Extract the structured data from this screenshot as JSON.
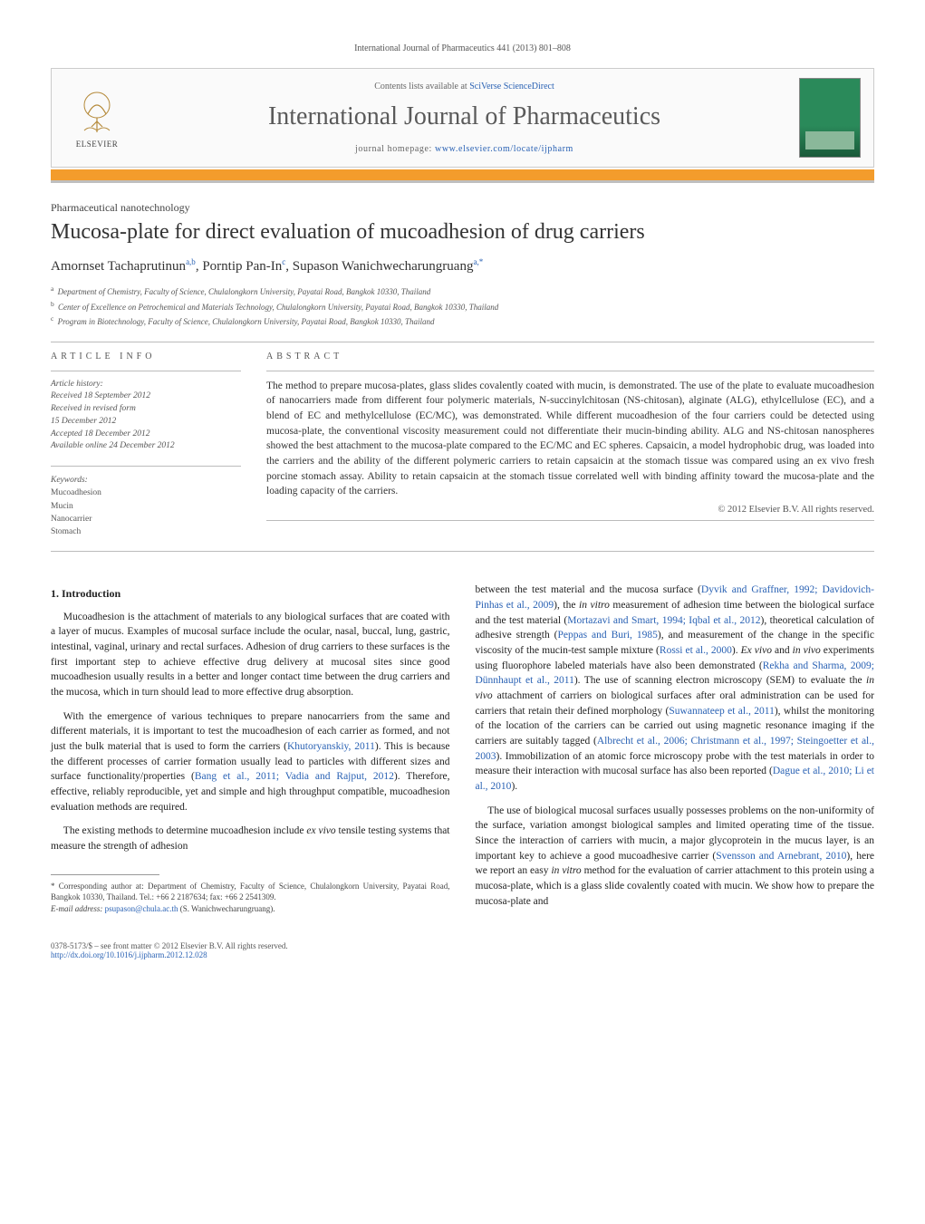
{
  "journal_ref": "International Journal of Pharmaceutics 441 (2013) 801–808",
  "header": {
    "contents_prefix": "Contents lists available at ",
    "contents_link": "SciVerse ScienceDirect",
    "journal_title": "International Journal of Pharmaceutics",
    "homepage_prefix": "journal homepage: ",
    "homepage_link": "www.elsevier.com/locate/ijpharm",
    "publisher": "ELSEVIER"
  },
  "section_tag": "Pharmaceutical nanotechnology",
  "title": "Mucosa-plate for direct evaluation of mucoadhesion of drug carriers",
  "authors_html": "Amornset Tachaprutinun<sup>a,b</sup>, Porntip Pan-In<sup>c</sup>, Supason Wanichwecharungruang<sup>a,*</sup>",
  "affiliations": [
    "a Department of Chemistry, Faculty of Science, Chulalongkorn University, Payatai Road, Bangkok 10330, Thailand",
    "b Center of Excellence on Petrochemical and Materials Technology, Chulalongkorn University, Payatai Road, Bangkok 10330, Thailand",
    "c Program in Biotechnology, Faculty of Science, Chulalongkorn University, Payatai Road, Bangkok 10330, Thailand"
  ],
  "info": {
    "head": "ARTICLE INFO",
    "history_label": "Article history:",
    "history": [
      "Received 18 September 2012",
      "Received in revised form",
      "15 December 2012",
      "Accepted 18 December 2012",
      "Available online 24 December 2012"
    ],
    "keywords_label": "Keywords:",
    "keywords": [
      "Mucoadhesion",
      "Mucin",
      "Nanocarrier",
      "Stomach"
    ]
  },
  "abstract": {
    "head": "ABSTRACT",
    "text": "The method to prepare mucosa-plates, glass slides covalently coated with mucin, is demonstrated. The use of the plate to evaluate mucoadhesion of nanocarriers made from different four polymeric materials, N-succinylchitosan (NS-chitosan), alginate (ALG), ethylcellulose (EC), and a blend of EC and methylcellulose (EC/MC), was demonstrated. While different mucoadhesion of the four carriers could be detected using mucosa-plate, the conventional viscosity measurement could not differentiate their mucin-binding ability. ALG and NS-chitosan nanospheres showed the best attachment to the mucosa-plate compared to the EC/MC and EC spheres. Capsaicin, a model hydrophobic drug, was loaded into the carriers and the ability of the different polymeric carriers to retain capsaicin at the stomach tissue was compared using an ex vivo fresh porcine stomach assay. Ability to retain capsaicin at the stomach tissue correlated well with binding affinity toward the mucosa-plate and the loading capacity of the carriers.",
    "copyright": "© 2012 Elsevier B.V. All rights reserved."
  },
  "body": {
    "h1": "1. Introduction",
    "p1": "Mucoadhesion is the attachment of materials to any biological surfaces that are coated with a layer of mucus. Examples of mucosal surface include the ocular, nasal, buccal, lung, gastric, intestinal, vaginal, urinary and rectal surfaces. Adhesion of drug carriers to these surfaces is the first important step to achieve effective drug delivery at mucosal sites since good mucoadhesion usually results in a better and longer contact time between the drug carriers and the mucosa, which in turn should lead to more effective drug absorption.",
    "p2a": "With the emergence of various techniques to prepare nanocarriers from the same and different materials, it is important to test the mucoadhesion of each carrier as formed, and not just the bulk material that is used to form the carriers (",
    "p2c1": "Khutoryanskiy, 2011",
    "p2b": "). This is because the different processes of carrier formation usually lead to particles with different sizes and surface functionality/properties (",
    "p2c2": "Bang et al., 2011; Vadia and Rajput, 2012",
    "p2c": "). Therefore, effective, reliably reproducible, yet and simple and high throughput compatible, mucoadhesion evaluation methods are required.",
    "p3a": "The existing methods to determine mucoadhesion include ",
    "p3i": "ex vivo",
    "p3b": " tensile testing systems that measure the strength of adhesion",
    "p4a": "between the test material and the mucosa surface (",
    "p4c1": "Dyvik and Graffner, 1992; Davidovich-Pinhas et al., 2009",
    "p4b": "), the ",
    "p4i1": "in vitro",
    "p4c": " measurement of adhesion time between the biological surface and the test material (",
    "p4c2": "Mortazavi and Smart, 1994; Iqbal et al., 2012",
    "p4d": "), theoretical calculation of adhesive strength (",
    "p4c3": "Peppas and Buri, 1985",
    "p4e": "), and measurement of the change in the specific viscosity of the mucin-test sample mixture (",
    "p4c4": "Rossi et al., 2000",
    "p4f": "). ",
    "p4i2": "Ex vivo",
    "p4g": " and ",
    "p4i3": "in vivo",
    "p4h": " experiments using fluorophore labeled materials have also been demonstrated (",
    "p4c5": "Rekha and Sharma, 2009; Dünnhaupt et al., 2011",
    "p4j": "). The use of scanning electron microscopy (SEM) to evaluate the ",
    "p4i4": "in vivo",
    "p4k": " attachment of carriers on biological surfaces after oral administration can be used for carriers that retain their defined morphology (",
    "p4c6": "Suwannateep et al., 2011",
    "p4l": "), whilst the monitoring of the location of the carriers can be carried out using magnetic resonance imaging if the carriers are suitably tagged (",
    "p4c7": "Albrecht et al., 2006; Christmann et al., 1997; Steingoetter et al., 2003",
    "p4m": "). Immobilization of an atomic force microscopy probe with the test materials in order to measure their interaction with mucosal surface has also been reported (",
    "p4c8": "Dague et al., 2010; Li et al., 2010",
    "p4n": ").",
    "p5a": "The use of biological mucosal surfaces usually possesses problems on the non-uniformity of the surface, variation amongst biological samples and limited operating time of the tissue. Since the interaction of carriers with mucin, a major glycoprotein in the mucus layer, is an important key to achieve a good mucoadhesive carrier (",
    "p5c1": "Svensson and Arnebrant, 2010",
    "p5b": "), here we report an easy ",
    "p5i": "in vitro",
    "p5c": " method for the evaluation of carrier attachment to this protein using a mucosa-plate, which is a glass slide covalently coated with mucin. We show how to prepare the mucosa-plate and"
  },
  "footnotes": {
    "corr": "* Corresponding author at: Department of Chemistry, Faculty of Science, Chulalongkorn University, Payatai Road, Bangkok 10330, Thailand. Tel.: +66 2 2187634; fax: +66 2 2541309.",
    "email_label": "E-mail address: ",
    "email": "psupason@chula.ac.th",
    "email_tail": " (S. Wanichwecharungruang)."
  },
  "bottom": {
    "left1": "0378-5173/$ – see front matter © 2012 Elsevier B.V. All rights reserved.",
    "doi": "http://dx.doi.org/10.1016/j.ijpharm.2012.12.028"
  },
  "colors": {
    "link": "#2a62b4",
    "accent": "#f39c2c",
    "cover": "#2a8a5a"
  }
}
